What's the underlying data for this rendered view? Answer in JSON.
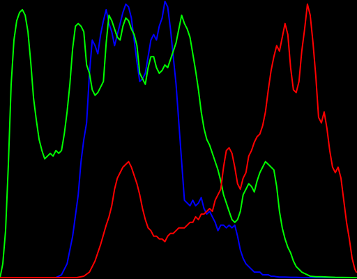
{
  "chart_data": {
    "type": "line",
    "title": "",
    "xlabel": "",
    "ylabel": "",
    "xlim": [
      0,
      255
    ],
    "ylim": [
      0,
      100
    ],
    "grid": false,
    "legend": "none",
    "background": "#000000",
    "series": [
      {
        "color": "#0000ff",
        "x": [
          0,
          40,
          44,
          48,
          52,
          56,
          58,
          60,
          62,
          64,
          66,
          68,
          70,
          72,
          74,
          76,
          78,
          80,
          82,
          84,
          86,
          88,
          90,
          92,
          94,
          96,
          98,
          100,
          102,
          104,
          106,
          108,
          110,
          112,
          114,
          116,
          118,
          120,
          122,
          124,
          126,
          128,
          130,
          132,
          134,
          136,
          138,
          140,
          142,
          144,
          146,
          148,
          150,
          152,
          154,
          156,
          158,
          160,
          162,
          164,
          166,
          168,
          170,
          172,
          174,
          176,
          178,
          180,
          182,
          184,
          186,
          188,
          190,
          192,
          194,
          196,
          198,
          200,
          204,
          208,
          212,
          216,
          220,
          230,
          255
        ],
        "y": [
          0,
          0,
          1,
          5,
          15,
          30,
          42,
          50,
          56,
          74,
          86,
          84,
          81,
          88,
          93,
          97,
          92,
          89,
          84,
          88,
          92,
          96,
          99,
          98,
          94,
          86,
          78,
          71,
          72,
          74,
          80,
          86,
          88,
          86,
          91,
          94,
          100,
          98,
          90,
          80,
          70,
          56,
          42,
          28,
          27,
          26,
          28,
          26,
          27,
          29,
          25,
          23,
          24,
          22,
          20,
          17,
          19,
          19,
          18,
          19,
          18,
          19,
          15,
          10,
          7,
          5,
          4,
          3,
          2,
          2,
          2,
          1,
          1,
          1,
          0.5,
          0.5,
          0.3,
          0.2,
          0.2,
          0.1,
          0.1,
          0,
          0,
          0,
          0
        ]
      },
      {
        "color": "#00ff00",
        "x": [
          0,
          2,
          4,
          6,
          8,
          10,
          12,
          14,
          16,
          18,
          20,
          22,
          24,
          26,
          28,
          30,
          32,
          34,
          36,
          38,
          40,
          42,
          44,
          46,
          48,
          50,
          52,
          54,
          56,
          58,
          60,
          62,
          64,
          66,
          68,
          70,
          72,
          74,
          76,
          78,
          80,
          82,
          84,
          86,
          88,
          90,
          92,
          94,
          96,
          98,
          100,
          102,
          104,
          106,
          108,
          110,
          112,
          114,
          116,
          118,
          120,
          122,
          124,
          126,
          128,
          130,
          132,
          134,
          136,
          138,
          140,
          142,
          144,
          146,
          148,
          150,
          152,
          154,
          156,
          158,
          160,
          162,
          164,
          166,
          168,
          170,
          172,
          174,
          176,
          178,
          180,
          182,
          184,
          186,
          188,
          190,
          192,
          194,
          196,
          198,
          200,
          202,
          204,
          206,
          208,
          210,
          212,
          214,
          216,
          218,
          220,
          222,
          224,
          226,
          228,
          230,
          235,
          240,
          255
        ],
        "y": [
          0,
          5,
          17,
          41,
          70,
          86,
          93,
          96,
          97,
          95,
          89,
          78,
          65,
          57,
          50,
          46,
          43,
          44,
          45,
          44,
          46,
          45,
          46,
          52,
          60,
          70,
          83,
          91,
          92,
          91,
          89,
          77,
          74,
          68,
          66,
          67,
          69,
          71,
          85,
          95,
          93,
          90,
          87,
          86,
          91,
          94,
          93,
          90,
          88,
          84,
          74,
          72,
          70,
          76,
          80,
          80,
          76,
          74,
          75,
          77,
          76,
          79,
          82,
          85,
          90,
          95,
          92,
          90,
          87,
          81,
          75,
          68,
          60,
          54,
          50,
          48,
          45,
          42,
          39,
          35,
          30,
          27,
          24,
          21,
          20,
          21,
          24,
          30,
          32,
          34,
          33,
          31,
          35,
          38,
          40,
          42,
          41,
          40,
          39,
          33,
          24,
          18,
          14,
          11,
          9,
          6,
          4,
          3,
          2,
          1.5,
          1,
          0.5,
          0.4,
          0.3,
          0.3,
          0.3,
          0.2,
          0.1,
          0
        ]
      },
      {
        "color": "#ff0000",
        "x": [
          0,
          55,
          60,
          64,
          68,
          72,
          76,
          78,
          80,
          82,
          84,
          86,
          88,
          90,
          92,
          94,
          96,
          98,
          100,
          102,
          104,
          106,
          108,
          110,
          112,
          114,
          116,
          118,
          120,
          122,
          124,
          126,
          128,
          130,
          132,
          134,
          136,
          138,
          140,
          142,
          144,
          146,
          148,
          150,
          152,
          154,
          156,
          158,
          160,
          162,
          164,
          166,
          168,
          170,
          172,
          174,
          176,
          178,
          180,
          182,
          184,
          186,
          188,
          190,
          192,
          194,
          196,
          198,
          200,
          202,
          204,
          206,
          208,
          210,
          212,
          214,
          216,
          218,
          220,
          222,
          224,
          226,
          228,
          230,
          232,
          234,
          236,
          238,
          240,
          242,
          244,
          246,
          248,
          250,
          252,
          254,
          255
        ],
        "y": [
          0,
          0,
          0.5,
          2,
          6,
          12,
          19,
          22,
          26,
          32,
          36,
          38,
          40,
          41,
          42,
          40,
          37,
          34,
          30,
          25,
          21,
          18,
          17,
          15,
          15,
          14,
          14,
          13,
          15,
          16,
          16,
          17,
          18,
          18,
          18,
          19,
          20,
          20,
          22,
          21,
          23,
          23,
          24,
          25,
          24,
          28,
          30,
          32,
          40,
          46,
          47,
          45,
          40,
          34,
          32,
          36,
          38,
          44,
          46,
          49,
          51,
          52,
          55,
          60,
          68,
          75,
          80,
          84,
          82,
          87,
          92,
          88,
          76,
          68,
          67,
          71,
          82,
          90,
          99,
          95,
          85,
          73,
          58,
          56,
          60,
          54,
          46,
          40,
          38,
          40,
          36,
          28,
          20,
          14,
          7,
          3,
          2
        ]
      }
    ]
  }
}
